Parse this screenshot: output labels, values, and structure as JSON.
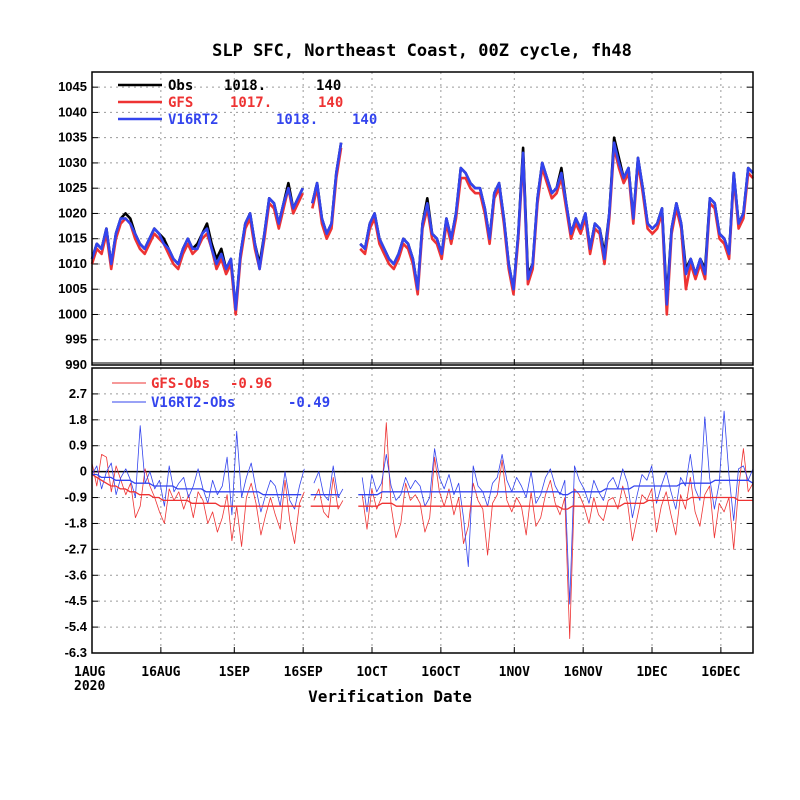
{
  "chart_data": [
    {
      "type": "line",
      "title": "SLP SFC, Northeast Coast, 00Z cycle, fh48",
      "xlabel": "Verification Date",
      "x_tick_labels": [
        "1AUG",
        "16AUG",
        "1SEP",
        "16SEP",
        "1OCT",
        "16OCT",
        "1NOV",
        "16NOV",
        "1DEC",
        "16DEC"
      ],
      "x_tick_year": "2020",
      "x_range": [
        "2020-08-01",
        "2020-12-23"
      ],
      "ylim": [
        990,
        1048
      ],
      "y_ticks": [
        "990",
        "995",
        "1000",
        "1005",
        "1010",
        "1015",
        "1020",
        "1025",
        "1030",
        "1035",
        "1040",
        "1045"
      ],
      "grid": true,
      "legend_position": "top-left",
      "series": [
        {
          "name": "Obs",
          "mean": "1018.",
          "count": "140",
          "color": "#000000",
          "values": [
            1011,
            1014,
            1013,
            1017,
            1010,
            1016,
            1019,
            1020,
            1019,
            1016,
            1014,
            1013,
            1015,
            1017,
            1016,
            1015,
            1013,
            1011,
            1010,
            1013,
            1015,
            1013,
            1014,
            1016,
            1018,
            1014,
            1011,
            1013,
            1009,
            1011,
            1001,
            1012,
            1018,
            1020,
            1014,
            1010,
            1016,
            1023,
            1022,
            1018,
            1022,
            1026,
            1021,
            1023,
            1025,
            null,
            1022,
            1026,
            1019,
            1016,
            1018,
            1028,
            1034,
            null,
            null,
            null,
            1014,
            1013,
            1018,
            1020,
            1015,
            1013,
            1011,
            1010,
            1012,
            1015,
            1014,
            1011,
            1005,
            1018,
            1023,
            1016,
            1015,
            1012,
            1019,
            1015,
            1020,
            1029,
            1028,
            1026,
            1025,
            1025,
            1021,
            1015,
            1024,
            1026,
            1019,
            1010,
            1005,
            1016,
            1033,
            1008,
            1010,
            1023,
            1030,
            1027,
            1024,
            1025,
            1029,
            1022,
            1016,
            1019,
            1017,
            1020,
            1013,
            1018,
            1017,
            1012,
            1020,
            1035,
            1031,
            1027,
            1029,
            1019,
            1031,
            1025,
            1018,
            1017,
            1018,
            1021,
            1003,
            1017,
            1022,
            1018,
            1009,
            1011,
            1008,
            1011,
            1009,
            1023,
            1022,
            1016,
            1015,
            1012,
            1028,
            1018,
            1020,
            1029,
            1028
          ]
        },
        {
          "name": "GFS",
          "mean": "1017.",
          "count": "140",
          "color": "#ee3333",
          "values": [
            1010,
            1013,
            1012,
            1016,
            1009,
            1015,
            1018,
            1019,
            1018,
            1015,
            1013,
            1012,
            1014,
            1016,
            1015,
            1014,
            1012,
            1010,
            1009,
            1012,
            1014,
            1012,
            1013,
            1015,
            1016,
            1013,
            1009,
            1011,
            1008,
            1010,
            1000,
            1011,
            1017,
            1019,
            1013,
            1009,
            1015,
            1022,
            1021,
            1017,
            1021,
            1025,
            1020,
            1022,
            1024,
            null,
            1021,
            1025,
            1018,
            1015,
            1017,
            1027,
            1033,
            null,
            null,
            null,
            1013,
            1012,
            1017,
            1019,
            1014,
            1012,
            1010,
            1009,
            1011,
            1014,
            1013,
            1010,
            1004,
            1017,
            1021,
            1015,
            1014,
            1011,
            1018,
            1014,
            1019,
            1027,
            1027,
            1025,
            1024,
            1024,
            1020,
            1014,
            1023,
            1025,
            1018,
            1009,
            1004,
            1015,
            1031,
            1006,
            1009,
            1022,
            1029,
            1026,
            1023,
            1024,
            1027,
            1021,
            1015,
            1018,
            1016,
            1019,
            1012,
            1017,
            1016,
            1010,
            1019,
            1033,
            1029,
            1026,
            1028,
            1018,
            1030,
            1024,
            1017,
            1016,
            1017,
            1020,
            1000,
            1016,
            1021,
            1017,
            1005,
            1010,
            1007,
            1010,
            1007,
            1022,
            1021,
            1015,
            1014,
            1011,
            1027,
            1017,
            1019,
            1028,
            1027
          ]
        },
        {
          "name": "V16RT2",
          "mean": "1018.",
          "count": "140",
          "color": "#3344ee",
          "values": [
            1011,
            1014,
            1013,
            1017,
            1010,
            1016,
            1019,
            1019,
            1018,
            1016,
            1014,
            1013,
            1015,
            1017,
            1016,
            1014,
            1013,
            1011,
            1010,
            1013,
            1015,
            1013,
            1013,
            1016,
            1017,
            1013,
            1010,
            1012,
            1009,
            1011,
            1001,
            1012,
            1018,
            1020,
            1014,
            1009,
            1016,
            1023,
            1022,
            1018,
            1022,
            1025,
            1021,
            1023,
            1025,
            null,
            1022,
            1026,
            1019,
            1016,
            1018,
            1028,
            1034,
            null,
            null,
            null,
            1014,
            1013,
            1018,
            1020,
            1015,
            1013,
            1011,
            1010,
            1012,
            1015,
            1014,
            1011,
            1005,
            1018,
            1022,
            1016,
            1015,
            1012,
            1019,
            1015,
            1020,
            1029,
            1028,
            1026,
            1025,
            1025,
            1021,
            1015,
            1024,
            1026,
            1019,
            1010,
            1005,
            1016,
            1032,
            1007,
            1010,
            1023,
            1030,
            1027,
            1024,
            1025,
            1028,
            1022,
            1016,
            1019,
            1017,
            1020,
            1013,
            1018,
            1017,
            1011,
            1020,
            1034,
            1030,
            1027,
            1029,
            1019,
            1031,
            1025,
            1018,
            1017,
            1018,
            1021,
            1002,
            1017,
            1022,
            1018,
            1008,
            1011,
            1008,
            1011,
            1008,
            1023,
            1022,
            1016,
            1015,
            1012,
            1028,
            1018,
            1020,
            1029,
            1028
          ]
        }
      ]
    },
    {
      "type": "line",
      "xlabel": "Verification Date",
      "ylim": [
        -6.3,
        3.6
      ],
      "y_ticks": [
        "-6.3",
        "-5.4",
        "-4.5",
        "-3.6",
        "-2.7",
        "-1.8",
        "-0.9",
        "0",
        "0.9",
        "1.8",
        "2.7"
      ],
      "grid": true,
      "legend_position": "top-left",
      "series": [
        {
          "name": "GFS-Obs",
          "mean_label": "-0.96",
          "color": "#ee3333",
          "values": [
            0.3,
            -0.5,
            0.6,
            0.5,
            -0.7,
            0.2,
            -0.3,
            -0.8,
            -0.4,
            -1.6,
            -1.2,
            0.1,
            -0.5,
            -0.9,
            -1.4,
            -1.8,
            -0.6,
            -1.0,
            -0.7,
            -1.3,
            -0.8,
            -1.6,
            -0.7,
            -1.0,
            -1.8,
            -1.4,
            -2.1,
            -1.6,
            -0.8,
            -2.4,
            -1.2,
            -2.6,
            -0.9,
            -0.4,
            -1.1,
            -2.2,
            -1.5,
            -0.9,
            -1.5,
            -2.0,
            -0.3,
            -1.7,
            -2.5,
            -1.1,
            -0.7,
            null,
            -1.0,
            -0.6,
            -1.4,
            -1.6,
            -0.2,
            -1.3,
            -1.0,
            null,
            null,
            null,
            -0.8,
            -2.0,
            -0.6,
            -1.3,
            -0.9,
            1.7,
            -1.2,
            -2.3,
            -1.8,
            -0.4,
            -1.0,
            -0.8,
            -1.1,
            -2.1,
            -1.6,
            0.5,
            -0.7,
            -1.2,
            -0.6,
            -1.5,
            -0.9,
            -2.5,
            -1.9,
            -0.4,
            -1.0,
            -1.3,
            -2.9,
            -1.1,
            -0.8,
            0.4,
            -1.0,
            -1.4,
            -0.9,
            -1.2,
            -2.2,
            -0.7,
            -1.9,
            -1.6,
            -0.8,
            -0.3,
            -1.1,
            -1.5,
            -0.9,
            -5.8,
            -0.6,
            -0.8,
            -1.2,
            -1.8,
            -0.9,
            -1.5,
            -1.7,
            -1.0,
            -0.9,
            -1.3,
            -0.5,
            -1.1,
            -2.4,
            -1.6,
            -0.8,
            -1.0,
            -0.6,
            -2.1,
            -1.2,
            -0.7,
            -1.5,
            -2.2,
            -0.8,
            -1.3,
            -0.2,
            -1.4,
            -1.9,
            -0.8,
            -0.5,
            -2.3,
            -1.1,
            -1.4,
            -0.9,
            -2.7,
            -0.6,
            0.8,
            -0.7,
            -0.4
          ]
        },
        {
          "name": "V16RT2-Obs",
          "mean_label": "-0.49",
          "color": "#3344ee",
          "values": [
            -0.1,
            0.2,
            -0.6,
            0.0,
            0.3,
            -0.8,
            -0.2,
            0.1,
            -0.3,
            -0.9,
            1.6,
            -0.4,
            0.0,
            -0.6,
            -0.3,
            -1.2,
            0.2,
            -0.7,
            -0.4,
            -0.2,
            -0.9,
            -0.5,
            0.1,
            -0.6,
            -1.1,
            -0.3,
            -0.8,
            -0.5,
            0.5,
            -1.5,
            1.4,
            -0.9,
            -0.2,
            0.3,
            -0.6,
            -1.4,
            -0.8,
            -0.3,
            -0.5,
            -1.2,
            0.0,
            -1.0,
            -1.3,
            -0.5,
            0.1,
            null,
            -0.4,
            0.0,
            -0.8,
            -1.0,
            0.2,
            -0.9,
            -0.6,
            null,
            null,
            null,
            -0.2,
            -1.4,
            -0.1,
            -0.7,
            -0.4,
            0.6,
            -0.5,
            -1.0,
            -0.8,
            -0.2,
            -0.6,
            -0.3,
            -0.5,
            -1.2,
            -0.9,
            0.8,
            -0.2,
            -0.6,
            -0.1,
            -0.8,
            -0.4,
            -1.6,
            -3.3,
            0.2,
            -0.5,
            -0.7,
            -1.2,
            -0.4,
            -0.2,
            0.6,
            -0.3,
            -0.7,
            -0.2,
            -0.5,
            -0.9,
            0.0,
            -1.1,
            -0.8,
            -0.2,
            0.1,
            -0.5,
            -0.8,
            -0.3,
            -4.6,
            0.2,
            -0.3,
            -0.6,
            -1.1,
            -0.3,
            -0.7,
            -1.0,
            -0.4,
            -0.2,
            -0.6,
            0.1,
            -0.4,
            -1.6,
            -0.8,
            -0.1,
            -0.3,
            0.2,
            -1.1,
            -0.5,
            0.0,
            -0.7,
            -1.3,
            -0.2,
            -0.5,
            0.6,
            -0.6,
            -1.0,
            1.9,
            -0.2,
            -1.3,
            -0.4,
            2.1,
            -0.1,
            -1.7,
            0.1,
            0.2,
            -0.3,
            0.1
          ]
        },
        {
          "name": "GFS-Obs running mean",
          "color": "#ee3333",
          "values": [
            -0.1,
            -0.2,
            -0.3,
            -0.4,
            -0.5,
            -0.5,
            -0.6,
            -0.6,
            -0.7,
            -0.7,
            -0.8,
            -0.8,
            -0.8,
            -0.9,
            -0.9,
            -1.0,
            -1.0,
            -1.0,
            -1.0,
            -1.0,
            -1.0,
            -1.1,
            -1.1,
            -1.1,
            -1.1,
            -1.1,
            -1.1,
            -1.2,
            -1.2,
            -1.2,
            -1.2,
            -1.2,
            -1.2,
            -1.2,
            -1.2,
            -1.2,
            -1.2,
            -1.2,
            -1.2,
            -1.2,
            -1.2,
            -1.2,
            -1.2,
            -1.2,
            -1.2,
            null,
            -1.2,
            -1.2,
            -1.2,
            -1.2,
            -1.2,
            -1.2,
            -1.2,
            null,
            null,
            null,
            -1.2,
            -1.2,
            -1.2,
            -1.2,
            -1.2,
            -1.1,
            -1.1,
            -1.1,
            -1.2,
            -1.2,
            -1.2,
            -1.2,
            -1.2,
            -1.2,
            -1.2,
            -1.2,
            -1.2,
            -1.2,
            -1.2,
            -1.2,
            -1.2,
            -1.2,
            -1.2,
            -1.2,
            -1.2,
            -1.2,
            -1.2,
            -1.2,
            -1.2,
            -1.2,
            -1.2,
            -1.2,
            -1.2,
            -1.2,
            -1.2,
            -1.2,
            -1.2,
            -1.2,
            -1.2,
            -1.2,
            -1.2,
            -1.2,
            -1.2,
            -1.3,
            -1.3,
            -1.2,
            -1.2,
            -1.2,
            -1.2,
            -1.2,
            -1.2,
            -1.2,
            -1.2,
            -1.2,
            -1.2,
            -1.2,
            -1.1,
            -1.1,
            -1.1,
            -1.1,
            -1.1,
            -1.0,
            -1.0,
            -1.0,
            -1.0,
            -1.0,
            -1.0,
            -1.0,
            -1.0,
            -1.0,
            -0.9,
            -0.9,
            -0.9,
            -0.9,
            -0.9,
            -0.9,
            -0.9,
            -0.9,
            -0.9,
            -0.9,
            -1.0,
            -1.0,
            -1.0,
            -1.0
          ]
        },
        {
          "name": "V16RT2-Obs running mean",
          "color": "#3344ee",
          "values": [
            -0.1,
            -0.1,
            -0.2,
            -0.2,
            -0.2,
            -0.3,
            -0.3,
            -0.3,
            -0.3,
            -0.4,
            -0.4,
            -0.4,
            -0.4,
            -0.5,
            -0.5,
            -0.5,
            -0.5,
            -0.5,
            -0.6,
            -0.6,
            -0.6,
            -0.6,
            -0.6,
            -0.6,
            -0.7,
            -0.7,
            -0.7,
            -0.7,
            -0.7,
            -0.7,
            -0.7,
            -0.7,
            -0.7,
            -0.7,
            -0.7,
            -0.7,
            -0.8,
            -0.8,
            -0.8,
            -0.8,
            -0.8,
            -0.8,
            -0.8,
            -0.8,
            -0.8,
            null,
            -0.8,
            -0.8,
            -0.8,
            -0.8,
            -0.8,
            -0.8,
            -0.8,
            null,
            null,
            null,
            -0.8,
            -0.8,
            -0.8,
            -0.8,
            -0.8,
            -0.7,
            -0.7,
            -0.7,
            -0.7,
            -0.7,
            -0.7,
            -0.7,
            -0.7,
            -0.7,
            -0.7,
            -0.7,
            -0.7,
            -0.7,
            -0.7,
            -0.7,
            -0.7,
            -0.7,
            -0.7,
            -0.7,
            -0.7,
            -0.7,
            -0.7,
            -0.7,
            -0.7,
            -0.7,
            -0.7,
            -0.7,
            -0.7,
            -0.7,
            -0.7,
            -0.7,
            -0.7,
            -0.7,
            -0.7,
            -0.7,
            -0.7,
            -0.7,
            -0.7,
            -0.8,
            -0.8,
            -0.7,
            -0.7,
            -0.7,
            -0.7,
            -0.7,
            -0.7,
            -0.7,
            -0.6,
            -0.6,
            -0.6,
            -0.6,
            -0.6,
            -0.6,
            -0.5,
            -0.5,
            -0.5,
            -0.5,
            -0.5,
            -0.5,
            -0.5,
            -0.5,
            -0.5,
            -0.5,
            -0.4,
            -0.4,
            -0.4,
            -0.4,
            -0.4,
            -0.4,
            -0.4,
            -0.3,
            -0.3,
            -0.3,
            -0.3,
            -0.3,
            -0.3,
            -0.3,
            -0.3,
            -0.4
          ]
        }
      ]
    }
  ]
}
